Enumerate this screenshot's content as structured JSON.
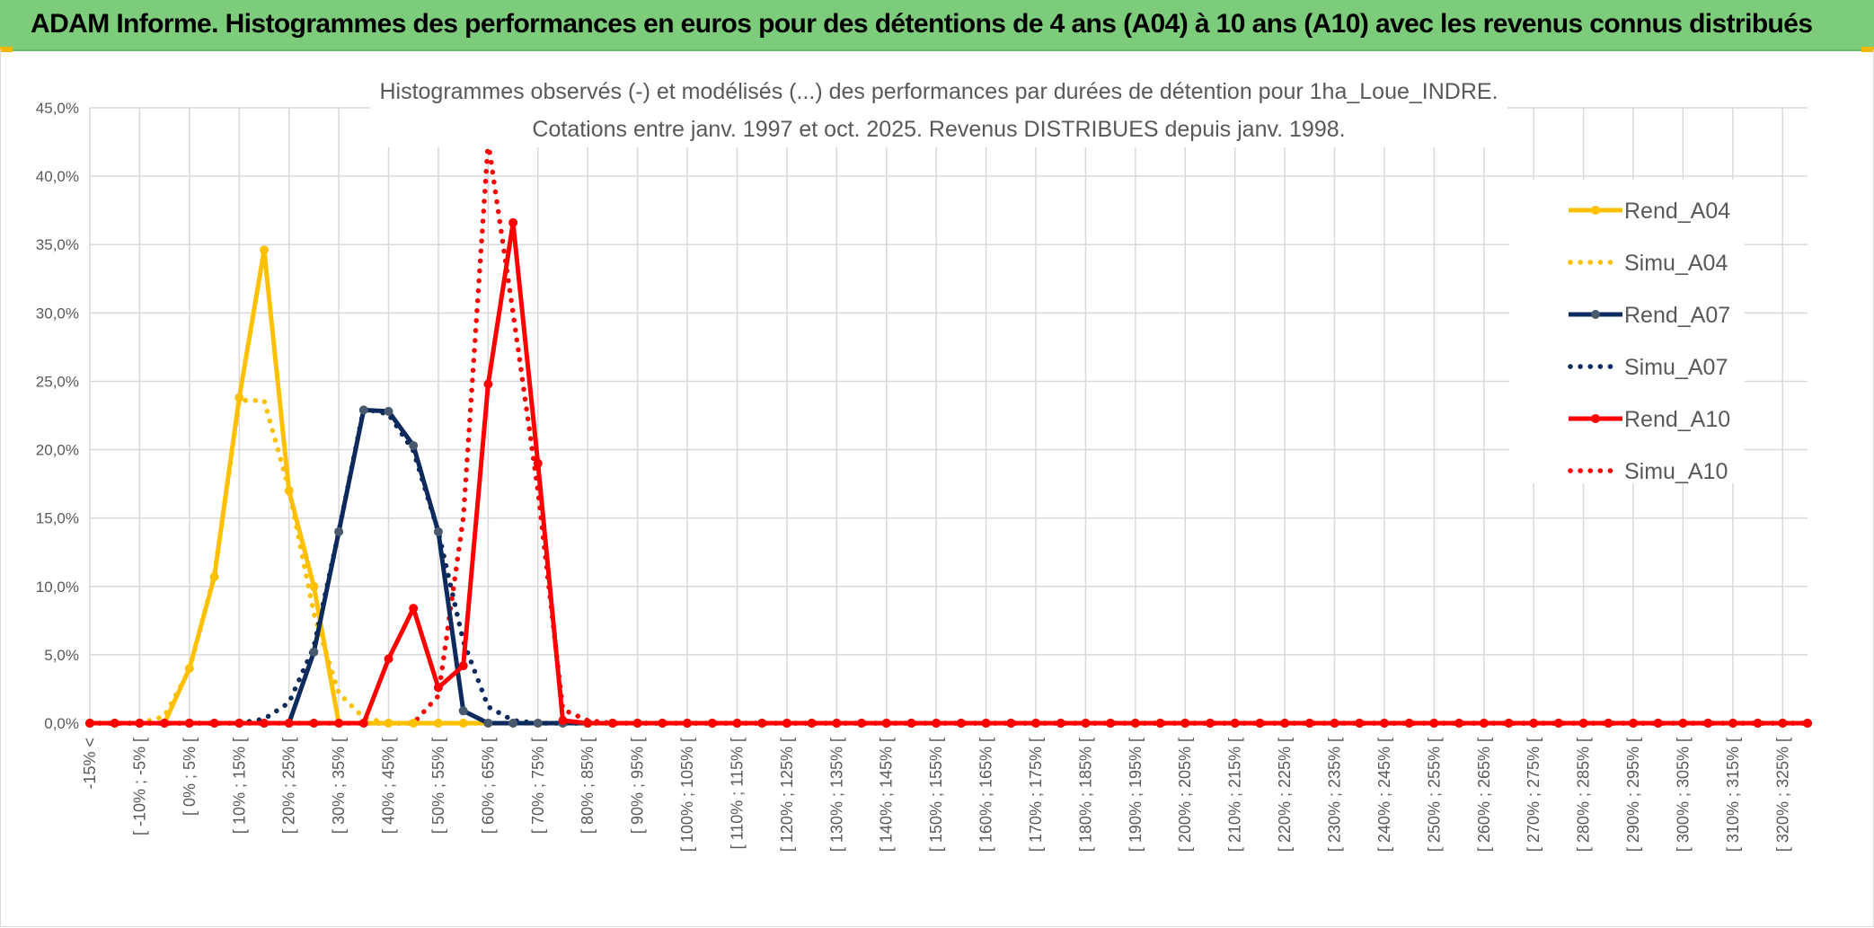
{
  "banner": {
    "title": "ADAM Informe. Histogrammes des performances en euros pour des détentions de 4 ans (A04) à 10 ans (A10) avec les revenus connus distribués"
  },
  "colors": {
    "banner_bg": "#7ccc7c",
    "A04": "#ffc000",
    "A07": "#0d2a5c",
    "A07_marker": "#4a5a6e",
    "A10": "#ff0000",
    "grid": "#d9d9d9"
  },
  "chart_data": {
    "type": "line",
    "title": "Histogrammes observés (-) et modélisés (...) des performances par durées de détention pour 1ha_Loue_INDRE.",
    "subtitle": "Cotations entre janv. 1997 et oct. 2025. Revenus DISTRIBUES depuis janv. 1998.",
    "ylim": [
      0,
      45
    ],
    "y_ticks": [
      "0,0%",
      "5,0%",
      "10,0%",
      "15,0%",
      "20,0%",
      "25,0%",
      "30,0%",
      "35,0%",
      "40,0%",
      "45,0%"
    ],
    "grid": true,
    "legend_position": "top-right",
    "x_tick_labels": [
      "-15% <",
      "[ -10% ; -5% [",
      "[ 0% ; 5% [",
      "[ 10% ; 15% [",
      "[ 20% ; 25% [",
      "[ 30% ; 35% [",
      "[ 40% ; 45% [",
      "[ 50% ; 55% [",
      "[ 60% ; 65% [",
      "[ 70% ; 75% [",
      "[ 80% ; 85% [",
      "[ 90% ; 95% [",
      "[ 100% ; 105% [",
      "[ 110% ; 115% [",
      "[ 120% ; 125% [",
      "[ 130% ; 135% [",
      "[ 140% ; 145% [",
      "[ 150% ; 155% [",
      "[ 160% ; 165% [",
      "[ 170% ; 175% [",
      "[ 180% ; 185% [",
      "[ 190% ; 195% [",
      "[ 200% ; 205% [",
      "[ 210% ; 215% [",
      "[ 220% ; 225% [",
      "[ 230% ; 235% [",
      "[ 240% ; 245% [",
      "[ 250% ; 255% [",
      "[ 260% ; 265% [",
      "[ 270% ; 275% [",
      "[ 280% ; 285% [",
      "[ 290% ; 295% [",
      "[ 300% ; 305% [",
      "[ 310% ; 315% [",
      "[ 320% ; 325% ["
    ],
    "series": [
      {
        "name": "Rend_A04",
        "style": "solid",
        "color": "#ffc000",
        "marker": "#ffc000",
        "values": [
          0,
          0,
          0,
          0,
          4,
          10.7,
          23.8,
          34.6,
          17,
          10,
          0,
          0,
          0,
          0,
          0,
          0
        ]
      },
      {
        "name": "Simu_A04",
        "style": "dotted",
        "color": "#ffc000",
        "values": [
          0,
          0,
          0,
          0.5,
          3.9,
          10.8,
          23.6,
          23.6,
          17.1,
          8,
          2.2,
          0.4,
          0,
          0,
          0,
          0
        ]
      },
      {
        "name": "Rend_A07",
        "style": "solid",
        "color": "#0d2a5c",
        "marker": "#4a5a6e",
        "values": [
          0,
          0,
          0,
          0,
          0,
          0,
          0,
          0,
          0,
          5.2,
          14,
          22.9,
          22.8,
          20.3,
          14,
          0.9,
          0,
          0,
          0,
          0
        ]
      },
      {
        "name": "Simu_A07",
        "style": "dotted",
        "color": "#0d2a5c",
        "values": [
          0,
          0,
          0,
          0,
          0,
          0,
          0,
          0.3,
          1.5,
          5.6,
          14,
          23,
          22.6,
          19.9,
          14,
          6,
          1.2,
          0.2,
          0,
          0,
          0
        ]
      },
      {
        "name": "Rend_A10",
        "style": "solid",
        "color": "#ff0000",
        "marker": "#ff0000",
        "values": [
          0,
          0,
          0,
          0,
          0,
          0,
          0,
          0,
          0,
          0,
          0,
          0,
          4.7,
          8.4,
          2.6,
          4.2,
          24.8,
          36.6,
          19,
          0.2,
          0,
          0,
          0,
          0,
          0,
          0,
          0,
          0,
          0,
          0,
          0,
          0,
          0,
          0,
          0,
          0,
          0,
          0,
          0,
          0,
          0,
          0,
          0,
          0,
          0,
          0,
          0,
          0,
          0,
          0,
          0,
          0,
          0,
          0,
          0,
          0,
          0,
          0,
          0,
          0,
          0,
          0,
          0,
          0,
          0,
          0,
          0,
          0,
          0
        ]
      },
      {
        "name": "Simu_A10",
        "style": "dotted",
        "color": "#ff0000",
        "values": [
          0,
          0,
          0,
          0,
          0,
          0,
          0,
          0,
          0,
          0,
          0,
          0,
          0,
          0,
          2,
          15,
          42.5,
          30,
          17,
          1,
          0.2,
          0
        ]
      }
    ]
  }
}
